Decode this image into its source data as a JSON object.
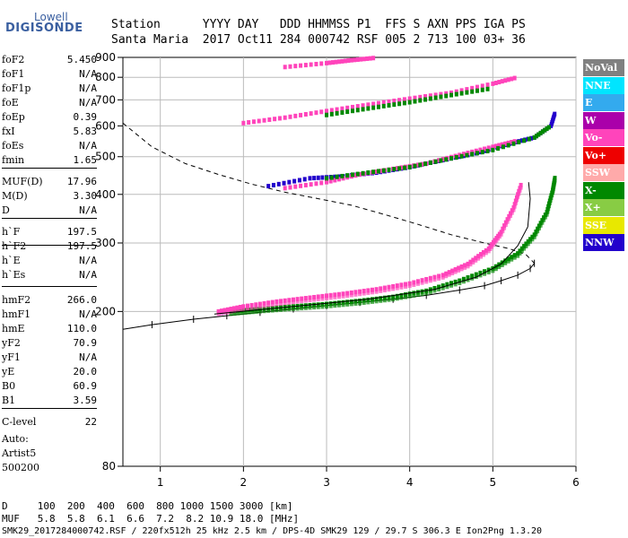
{
  "logo": {
    "top": "Lowell",
    "bottom": "DIGISONDE"
  },
  "header": {
    "line1": "Station      YYYY DAY   DDD HHMMSS P1  FFS S AXN PPS IGA PS",
    "line2": "Santa Maria  2017 Oct11 284 000742 RSF 005 2 713 100 03+ 36"
  },
  "params": [
    {
      "label": "foF2",
      "value": "5.450"
    },
    {
      "label": "foF1",
      "value": "N/A"
    },
    {
      "label": "foF1p",
      "value": "N/A"
    },
    {
      "label": "foE",
      "value": "N/A"
    },
    {
      "label": "foEp",
      "value": "0.39"
    },
    {
      "label": "fxI",
      "value": "5.83"
    },
    {
      "label": "foEs",
      "value": "N/A"
    },
    {
      "label": "fmin",
      "value": "1.65"
    },
    {
      "label": "MUF(D)",
      "value": "17.96"
    },
    {
      "label": "M(D)",
      "value": "3.30"
    },
    {
      "label": "D",
      "value": "N/A"
    },
    {
      "label": "h`F",
      "value": "197.5"
    },
    {
      "label": "h`F2",
      "value": "197.5"
    },
    {
      "label": "h`E",
      "value": "N/A"
    },
    {
      "label": "h`Es",
      "value": "N/A"
    },
    {
      "label": "hmF2",
      "value": "266.0"
    },
    {
      "label": "hmF1",
      "value": "N/A"
    },
    {
      "label": "hmE",
      "value": "110.0"
    },
    {
      "label": "yF2",
      "value": "70.9"
    },
    {
      "label": "yF1",
      "value": "N/A"
    },
    {
      "label": "yE",
      "value": "20.0"
    },
    {
      "label": "B0",
      "value": "60.9"
    },
    {
      "label": "B1",
      "value": "3.59"
    },
    {
      "label": "C-level",
      "value": "22"
    }
  ],
  "autoscale": {
    "line1": "Auto:",
    "line2": "Artist5",
    "line3": "500200"
  },
  "legend": [
    {
      "label": "NoVal",
      "color": "#808080"
    },
    {
      "label": "NNE",
      "color": "#00e5ff"
    },
    {
      "label": "E",
      "color": "#33aaee"
    },
    {
      "label": "W",
      "color": "#aa00aa"
    },
    {
      "label": "Vo-",
      "color": "#ff44bb"
    },
    {
      "label": "Vo+",
      "color": "#ee0000"
    },
    {
      "label": "SSW",
      "color": "#ffaaaa"
    },
    {
      "label": "X-",
      "color": "#008800"
    },
    {
      "label": "X+",
      "color": "#88cc44"
    },
    {
      "label": "SSE",
      "color": "#e8e800"
    },
    {
      "label": "NNW",
      "color": "#2200cc"
    }
  ],
  "footer": {
    "line1": "D     100  200  400  600  800 1000 1500 3000 [km]",
    "line2": "MUF   5.8  5.8  6.1  6.6  7.2  8.2 10.9 18.0 [MHz]",
    "line3": "SMK29_2017284000742.RSF / 220fx512h 25 kHz 2.5 km / DPS-4D SMK29 129 / 29.7 S 306.3 E Ion2Png 1.3.20"
  },
  "chart_data": {
    "type": "scatter",
    "title": "",
    "xlabel": "",
    "ylabel": "",
    "xlim": [
      0.55,
      6.0
    ],
    "ylim": [
      80,
      900
    ],
    "y_scale": "log",
    "xticks": [
      "1",
      "2",
      "3",
      "4",
      "5",
      "6"
    ],
    "yticks": [
      "80",
      "200",
      "300",
      "400",
      "500",
      "600",
      "700",
      "800",
      "900"
    ],
    "grid": true,
    "series": [
      {
        "name": "X-",
        "color": "#008800",
        "points": [
          [
            1.85,
            200
          ],
          [
            2.2,
            203
          ],
          [
            2.6,
            206
          ],
          [
            3.0,
            209
          ],
          [
            3.4,
            213
          ],
          [
            3.8,
            218
          ],
          [
            4.2,
            226
          ],
          [
            4.6,
            240
          ],
          [
            5.0,
            258
          ],
          [
            5.3,
            282
          ],
          [
            5.5,
            315
          ],
          [
            5.65,
            360
          ],
          [
            5.72,
            410
          ],
          [
            5.75,
            445
          ]
        ]
      },
      {
        "name": "Vo-",
        "color": "#ff44bb",
        "points": [
          [
            1.7,
            200
          ],
          [
            2.0,
            206
          ],
          [
            2.4,
            212
          ],
          [
            2.8,
            217
          ],
          [
            3.2,
            222
          ],
          [
            3.6,
            228
          ],
          [
            4.0,
            236
          ],
          [
            4.4,
            248
          ],
          [
            4.7,
            265
          ],
          [
            4.95,
            290
          ],
          [
            5.1,
            320
          ],
          [
            5.25,
            370
          ],
          [
            5.35,
            430
          ]
        ]
      },
      {
        "name": "NNW",
        "color": "#2200cc",
        "points": [
          [
            2.3,
            420
          ],
          [
            2.8,
            440
          ],
          [
            3.2,
            445
          ],
          [
            3.6,
            455
          ],
          [
            4.0,
            470
          ],
          [
            4.4,
            490
          ],
          [
            4.8,
            510
          ],
          [
            5.2,
            540
          ],
          [
            5.5,
            560
          ],
          [
            5.7,
            600
          ],
          [
            5.75,
            650
          ]
        ]
      },
      {
        "name": "Vo-",
        "color": "#ff44bb",
        "points": [
          [
            2.5,
            415
          ],
          [
            3.0,
            430
          ],
          [
            3.4,
            450
          ],
          [
            3.8,
            465
          ],
          [
            4.2,
            480
          ],
          [
            4.6,
            505
          ],
          [
            5.0,
            530
          ],
          [
            5.3,
            550
          ]
        ]
      },
      {
        "name": "X-",
        "color": "#008800",
        "points": [
          [
            3.0,
            440
          ],
          [
            3.5,
            455
          ],
          [
            4.0,
            470
          ],
          [
            4.5,
            495
          ],
          [
            5.0,
            520
          ],
          [
            5.5,
            560
          ],
          [
            5.7,
            600
          ]
        ]
      },
      {
        "name": "Vo-",
        "color": "#ff44bb",
        "points": [
          [
            2.0,
            610
          ],
          [
            2.5,
            630
          ],
          [
            3.0,
            655
          ],
          [
            3.5,
            680
          ],
          [
            4.0,
            705
          ],
          [
            4.5,
            730
          ],
          [
            5.0,
            770
          ],
          [
            5.3,
            800
          ]
        ]
      },
      {
        "name": "X-",
        "color": "#008800",
        "points": [
          [
            3.0,
            640
          ],
          [
            3.5,
            665
          ],
          [
            4.0,
            690
          ],
          [
            4.5,
            720
          ],
          [
            5.0,
            750
          ]
        ]
      },
      {
        "name": "Vo-",
        "color": "#ff44bb",
        "points": [
          [
            2.5,
            850
          ],
          [
            3.0,
            870
          ],
          [
            3.3,
            885
          ],
          [
            3.6,
            898
          ]
        ]
      }
    ],
    "profile": [
      [
        0.55,
        180
      ],
      [
        0.9,
        185
      ],
      [
        1.4,
        191
      ],
      [
        1.8,
        195
      ],
      [
        2.2,
        199
      ],
      [
        2.6,
        203
      ],
      [
        3.0,
        207
      ],
      [
        3.4,
        211
      ],
      [
        3.8,
        215
      ],
      [
        4.2,
        220
      ],
      [
        4.6,
        227
      ],
      [
        4.9,
        233
      ],
      [
        5.1,
        240
      ],
      [
        5.3,
        248
      ],
      [
        5.45,
        258
      ],
      [
        5.5,
        266
      ]
    ],
    "dashed_profile": [
      [
        0.55,
        610
      ],
      [
        0.9,
        530
      ],
      [
        1.3,
        480
      ],
      [
        1.7,
        450
      ],
      [
        2.1,
        425
      ],
      [
        2.5,
        405
      ],
      [
        2.9,
        390
      ],
      [
        3.3,
        375
      ],
      [
        3.7,
        355
      ],
      [
        4.1,
        335
      ],
      [
        4.5,
        315
      ],
      [
        4.9,
        300
      ],
      [
        5.2,
        290
      ],
      [
        5.4,
        280
      ],
      [
        5.5,
        266
      ]
    ],
    "ox_trace": [
      [
        1.65,
        197
      ],
      [
        2.5,
        205
      ],
      [
        3.5,
        215
      ],
      [
        4.3,
        228
      ],
      [
        4.8,
        245
      ],
      [
        5.1,
        265
      ],
      [
        5.3,
        295
      ],
      [
        5.42,
        330
      ],
      [
        5.45,
        390
      ],
      [
        5.43,
        430
      ]
    ]
  }
}
